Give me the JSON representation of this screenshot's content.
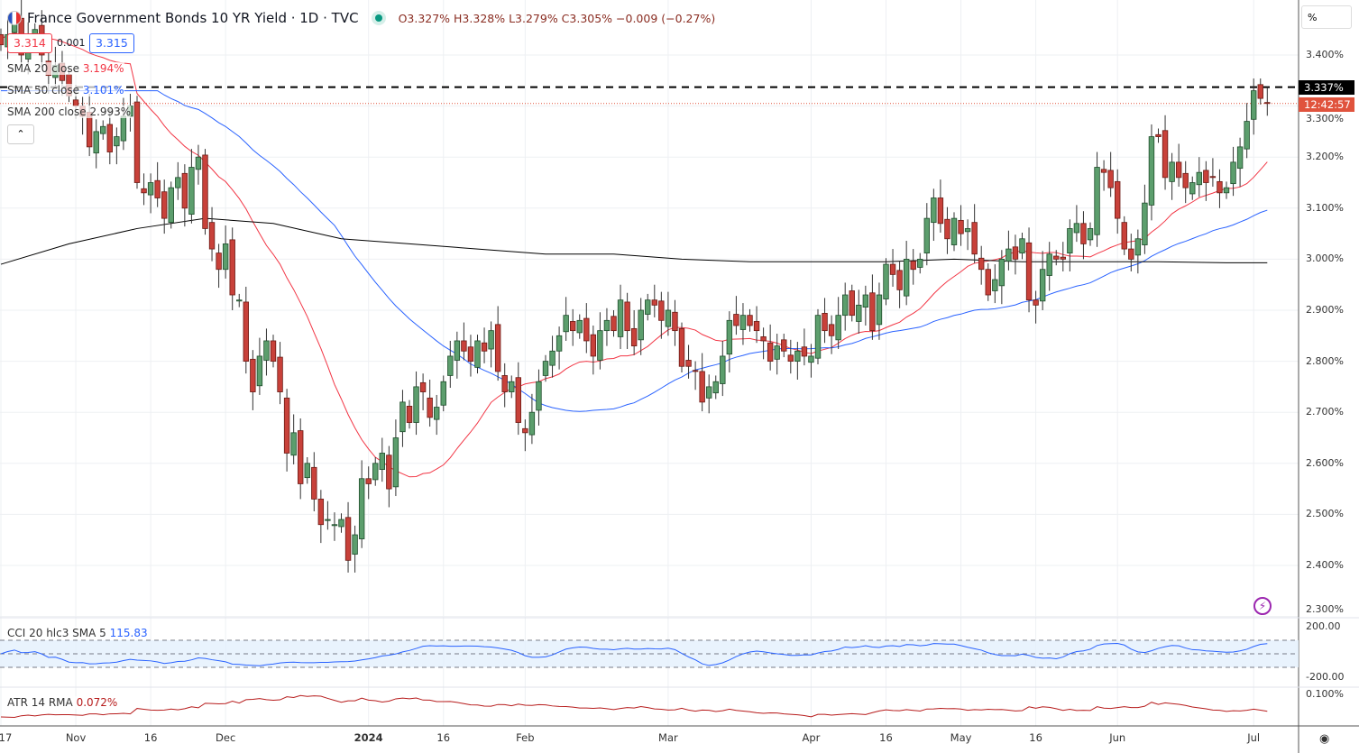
{
  "header": {
    "title": "France Government Bonds 10 YR Yield · 1D · TVC",
    "ohlc": "O3.327% H3.328% L3.279% C3.305% −0.009 (−0.27%)",
    "sell_price": "3.314",
    "spread": "0.001",
    "buy_price": "3.315"
  },
  "indicators": {
    "sma20": {
      "label": "SMA 20 close",
      "value": "3.194%",
      "color": "#f23645"
    },
    "sma50": {
      "label": "SMA 50 close",
      "value": "3.101%",
      "color": "#2962ff"
    },
    "sma200": {
      "label": "SMA 200 close",
      "value": "2.993%",
      "color": "#000000"
    },
    "cci": {
      "label": "CCI 20 hlc3 SMA 5",
      "value": "115.83",
      "color": "#2962ff"
    },
    "atr": {
      "label": "ATR 14 RMA",
      "value": "0.072%",
      "color": "#b71c1c"
    }
  },
  "collapse_icon": "chevron-up-icon",
  "axis_unit": "%",
  "price_tag": "3.337%",
  "countdown_tag": "12:42:57",
  "chart_data": {
    "type": "candlestick",
    "x_start": "2023-10-17",
    "ylim": [
      2.3,
      3.45
    ],
    "yticks": [
      "3.400%",
      "3.300%",
      "3.200%",
      "3.100%",
      "3.000%",
      "2.900%",
      "2.800%",
      "2.700%",
      "2.600%",
      "2.500%",
      "2.400%",
      "2.300%"
    ],
    "cci_ticks": [
      "200.00",
      "-200.00"
    ],
    "atr_ticks": [
      "0.100%"
    ],
    "xticks": [
      {
        "date": "2023-10-17",
        "label": "17"
      },
      {
        "date": "2023-11-01",
        "label": "Nov"
      },
      {
        "date": "2023-11-16",
        "label": "16"
      },
      {
        "date": "2023-12-01",
        "label": "Dec"
      },
      {
        "date": "2024-01-01",
        "label": "2024"
      },
      {
        "date": "2024-01-16",
        "label": "16"
      },
      {
        "date": "2024-02-01",
        "label": "Feb"
      },
      {
        "date": "2024-03-01",
        "label": "Mar"
      },
      {
        "date": "2024-04-01",
        "label": "Apr"
      },
      {
        "date": "2024-04-16",
        "label": "16"
      },
      {
        "date": "2024-05-01",
        "label": "May"
      },
      {
        "date": "2024-05-16",
        "label": "16"
      },
      {
        "date": "2024-06-03",
        "label": "Jun"
      },
      {
        "date": "2024-07-01",
        "label": "Jul"
      }
    ],
    "resistance_level": 3.337,
    "last_price": 3.305,
    "up_color": "#5c9e6d",
    "down_color": "#c8413a",
    "close": [
      3.42,
      3.44,
      3.46,
      3.4,
      3.44,
      3.45,
      3.4,
      3.36,
      3.38,
      3.35,
      3.32,
      3.3,
      3.28,
      3.22,
      3.25,
      3.26,
      3.21,
      3.24,
      3.28,
      3.3,
      3.15,
      3.13,
      3.15,
      3.12,
      3.08,
      3.14,
      3.16,
      3.1,
      3.18,
      3.2,
      3.06,
      3.02,
      2.98,
      3.03,
      2.93,
      2.92,
      2.8,
      2.74,
      2.81,
      2.84,
      2.8,
      2.74,
      2.62,
      2.66,
      2.56,
      2.6,
      2.53,
      2.48,
      2.49,
      2.48,
      2.49,
      2.41,
      2.46,
      2.57,
      2.56,
      2.6,
      2.62,
      2.55,
      2.65,
      2.72,
      2.68,
      2.75,
      2.74,
      2.69,
      2.71,
      2.76,
      2.81,
      2.84,
      2.82,
      2.8,
      2.84,
      2.82,
      2.86,
      2.78,
      2.74,
      2.76,
      2.68,
      2.66,
      2.7,
      2.76,
      2.8,
      2.82,
      2.85,
      2.89,
      2.86,
      2.88,
      2.84,
      2.81,
      2.86,
      2.88,
      2.86,
      2.92,
      2.86,
      2.83,
      2.9,
      2.92,
      2.91,
      2.88,
      2.9,
      2.86,
      2.79,
      2.79,
      2.78,
      2.72,
      2.75,
      2.76,
      2.81,
      2.88,
      2.87,
      2.89,
      2.87,
      2.86,
      2.84,
      2.8,
      2.83,
      2.82,
      2.8,
      2.82,
      2.81,
      2.81,
      2.89,
      2.86,
      2.85,
      2.89,
      2.93,
      2.89,
      2.91,
      2.93,
      2.86,
      2.93,
      2.99,
      2.97,
      2.94,
      3.0,
      2.98,
      3.0,
      3.08,
      3.12,
      3.07,
      3.04,
      3.08,
      3.05,
      3.06,
      3.01,
      2.98,
      2.93,
      2.96,
      3.0,
      3.02,
      3.0,
      3.04,
      2.92,
      2.91,
      2.98,
      3.01,
      3.0,
      3.0,
      3.06,
      3.07,
      3.03,
      3.06,
      3.18,
      3.17,
      3.14,
      3.08,
      3.02,
      3.0,
      3.04,
      3.11,
      3.24,
      3.24,
      3.16,
      3.19,
      3.16,
      3.14,
      3.15,
      3.17,
      3.15,
      3.16,
      3.13,
      3.14,
      3.19,
      3.22,
      3.27,
      3.33,
      3.315,
      3.305
    ],
    "sma200_every10": [
      2.99,
      3.03,
      3.06,
      3.08,
      3.07,
      3.04,
      3.03,
      3.02,
      3.01,
      3.01,
      3.0,
      2.995,
      2.995,
      2.995,
      3.0,
      2.995,
      2.995,
      2.995,
      2.993,
      2.993
    ]
  }
}
